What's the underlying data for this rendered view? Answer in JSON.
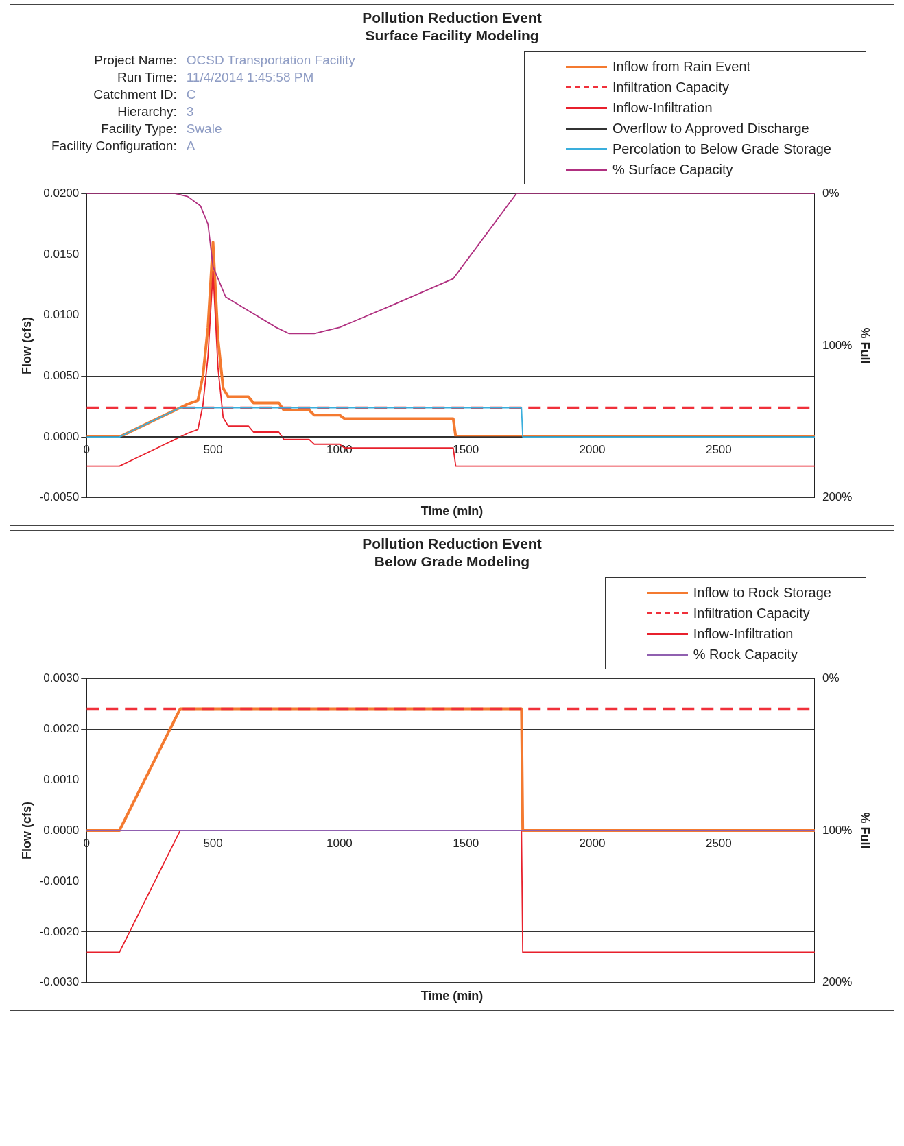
{
  "chart_data": [
    {
      "type": "line",
      "title": "Pollution Reduction Event",
      "subtitle": "Surface Facility Modeling",
      "xlabel": "Time (min)",
      "ylabel": "Flow (cfs)",
      "y2label": "% Full",
      "annotations": [
        "Project Name: OCSD Transportation Facility",
        "Run Time: 11/4/2014 1:45:58 PM",
        "Catchment ID: C",
        "Hierarchy: 3",
        "Facility Type: Swale",
        "Facility Configuration: A"
      ],
      "xlim": [
        0,
        2880
      ],
      "xticks": [
        0,
        500,
        1000,
        1500,
        2000,
        2500
      ],
      "ylim": [
        -0.005,
        0.02
      ],
      "yticks": [
        {
          "value": -0.005,
          "label": "-0.0050"
        },
        {
          "value": 0,
          "label": "0.0000"
        },
        {
          "value": 0.005,
          "label": "0.0050"
        },
        {
          "value": 0.01,
          "label": "0.0100"
        },
        {
          "value": 0.015,
          "label": "0.0150"
        },
        {
          "value": 0.02,
          "label": "0.0200"
        }
      ],
      "y2lim": [
        200,
        0
      ],
      "y2ticks": [
        {
          "value": 0,
          "label": "0%"
        },
        {
          "value": 100,
          "label": "100%"
        },
        {
          "value": 200,
          "label": "200%"
        }
      ],
      "grid": "y",
      "legend": "top right",
      "marker": "none",
      "series": [
        {
          "name": "Inflow from Rain Event",
          "color": "#f47a30",
          "x": [
            0,
            130,
            200,
            300,
            350,
            400,
            440,
            460,
            480,
            500,
            520,
            540,
            560,
            640,
            660,
            760,
            780,
            880,
            900,
            1000,
            1020,
            1450,
            1460,
            2880
          ],
          "values": [
            0,
            0,
            0.0007,
            0.0017,
            0.0022,
            0.0027,
            0.003,
            0.005,
            0.009,
            0.016,
            0.008,
            0.004,
            0.0033,
            0.0033,
            0.0028,
            0.0028,
            0.0022,
            0.0022,
            0.0018,
            0.0018,
            0.0015,
            0.0015,
            0,
            0
          ]
        },
        {
          "name": "Infiltration Capacity",
          "color": "#f0303a",
          "line_style": "dashed",
          "x": [
            0,
            2880
          ],
          "values": [
            0.0024,
            0.0024
          ]
        },
        {
          "name": "Inflow-Infiltration",
          "color": "#e8202c",
          "x": [
            0,
            130,
            200,
            300,
            350,
            400,
            440,
            460,
            480,
            500,
            520,
            540,
            560,
            640,
            660,
            760,
            780,
            880,
            900,
            1000,
            1020,
            1450,
            1460,
            2880
          ],
          "values": [
            -0.0024,
            -0.0024,
            -0.0017,
            -0.0007,
            -0.0002,
            0.0003,
            0.0006,
            0.0026,
            0.0066,
            0.0136,
            0.0056,
            0.0016,
            0.0009,
            0.0009,
            0.0004,
            0.0004,
            -0.0002,
            -0.0002,
            -0.0006,
            -0.0006,
            -0.0009,
            -0.0009,
            -0.0024,
            -0.0024
          ]
        },
        {
          "name": "Overflow to Approved Discharge",
          "color": "#333333",
          "x": [
            0,
            2880
          ],
          "values": [
            0,
            0
          ]
        },
        {
          "name": "Percolation to Below Grade Storage",
          "color": "#3aaedc",
          "x": [
            0,
            130,
            200,
            300,
            370,
            1720,
            1725,
            2880
          ],
          "values": [
            0,
            0,
            0.0007,
            0.0017,
            0.0024,
            0.0024,
            0,
            0
          ]
        },
        {
          "name": "% Surface Capacity",
          "color": "#b03080",
          "axis": "y2",
          "x": [
            0,
            350,
            400,
            450,
            480,
            500,
            550,
            650,
            750,
            800,
            900,
            1000,
            1200,
            1450,
            1700,
            2880
          ],
          "values": [
            0,
            0,
            2,
            8,
            20,
            48,
            68,
            78,
            88,
            92,
            92,
            88,
            74,
            56,
            0,
            0
          ]
        }
      ]
    },
    {
      "type": "line",
      "title": "Pollution Reduction Event",
      "subtitle": "Below Grade Modeling",
      "xlabel": "Time (min)",
      "ylabel": "Flow (cfs)",
      "y2label": "% Full",
      "xlim": [
        0,
        2880
      ],
      "xticks": [
        0,
        500,
        1000,
        1500,
        2000,
        2500
      ],
      "ylim": [
        -0.003,
        0.003
      ],
      "yticks": [
        {
          "value": -0.003,
          "label": "-0.0030"
        },
        {
          "value": -0.002,
          "label": "-0.0020"
        },
        {
          "value": -0.001,
          "label": "-0.0010"
        },
        {
          "value": 0,
          "label": "0.0000"
        },
        {
          "value": 0.001,
          "label": "0.0010"
        },
        {
          "value": 0.002,
          "label": "0.0020"
        },
        {
          "value": 0.003,
          "label": "0.0030"
        }
      ],
      "y2lim": [
        200,
        0
      ],
      "y2ticks": [
        {
          "value": 0,
          "label": "0%"
        },
        {
          "value": 100,
          "label": "100%"
        },
        {
          "value": 200,
          "label": "200%"
        }
      ],
      "grid": "y",
      "legend": "top right",
      "marker": "none",
      "series": [
        {
          "name": "Inflow to Rock Storage",
          "color": "#f47a30",
          "x": [
            0,
            130,
            200,
            250,
            300,
            350,
            370,
            1720,
            1725,
            2880
          ],
          "values": [
            0,
            0,
            0.0007,
            0.0012,
            0.0017,
            0.0022,
            0.0024,
            0.0024,
            0,
            0
          ]
        },
        {
          "name": "Infiltration Capacity",
          "color": "#f0303a",
          "line_style": "dashed",
          "x": [
            0,
            2880
          ],
          "values": [
            0.0024,
            0.0024
          ]
        },
        {
          "name": "Inflow-Infiltration",
          "color": "#e8202c",
          "x": [
            0,
            130,
            200,
            250,
            300,
            350,
            370,
            1720,
            1725,
            2880
          ],
          "values": [
            -0.0024,
            -0.0024,
            -0.0017,
            -0.0012,
            -0.0007,
            -0.0002,
            0,
            0,
            -0.0024,
            -0.0024
          ]
        },
        {
          "name": "% Rock Capacity",
          "color": "#9060b0",
          "axis": "y2",
          "x": [
            0,
            2880
          ],
          "values": [
            100,
            100
          ]
        }
      ]
    }
  ]
}
